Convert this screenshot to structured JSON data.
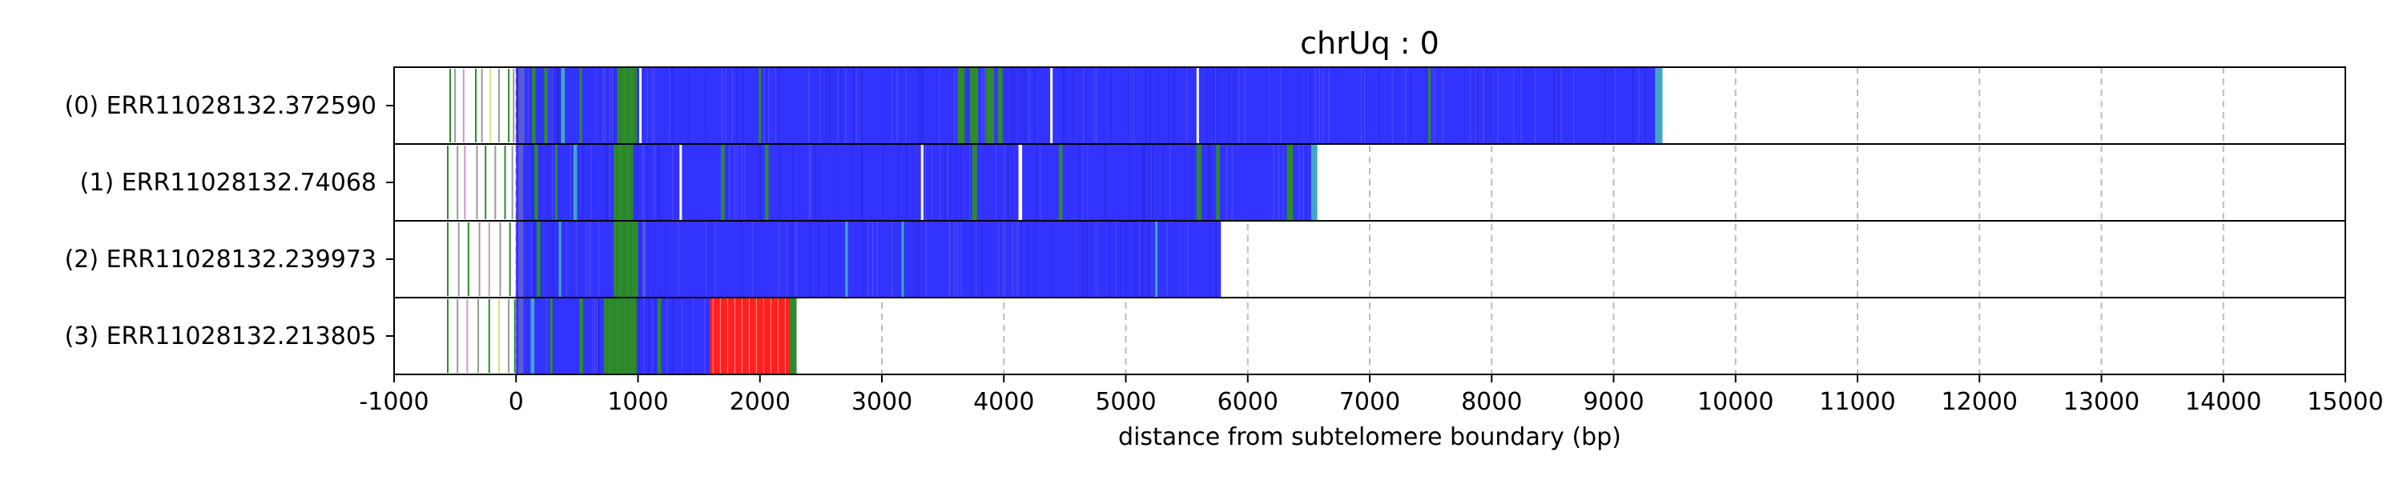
{
  "chart_data": {
    "type": "bar",
    "orientation": "horizontal",
    "title": "chrUq : 0",
    "xlabel": "distance from subtelomere boundary (bp)",
    "xlim": [
      -1000,
      15000
    ],
    "x_ticks": [
      -1000,
      0,
      1000,
      2000,
      3000,
      4000,
      5000,
      6000,
      7000,
      8000,
      9000,
      10000,
      11000,
      12000,
      13000,
      14000,
      15000
    ],
    "x_tick_labels": [
      "-1000",
      "0",
      "1000",
      "2000",
      "3000",
      "4000",
      "5000",
      "6000",
      "7000",
      "8000",
      "9000",
      "10000",
      "11000",
      "12000",
      "13000",
      "14000",
      "15000"
    ],
    "grid": "vertical dashed at x ticks",
    "colors": {
      "repeat": "#3333ff",
      "variant_green": "#2e8b2e",
      "variant_red": "#ff2020",
      "variant_cyan": "#3fa9c4",
      "subtelomere_grey": "#999999",
      "grid": "#bbbbbb"
    },
    "reads": [
      {
        "label": "(0) ERR11028132.372590",
        "main_start": 0,
        "main_end": 9400,
        "pre_marks": [
          {
            "x": -540,
            "c": "#2e8b2e"
          },
          {
            "x": -500,
            "c": "#999999"
          },
          {
            "x": -430,
            "c": "#cc99cc"
          },
          {
            "x": -330,
            "c": "#2e8b2e"
          },
          {
            "x": -280,
            "c": "#999999"
          },
          {
            "x": -210,
            "c": "#dddd88"
          },
          {
            "x": -140,
            "c": "#999999"
          },
          {
            "x": -60,
            "c": "#2e8b2e"
          },
          {
            "x": -20,
            "c": "#999999"
          }
        ],
        "overlays": [
          {
            "x0": 20,
            "x1": 70,
            "c": "#5b5bd6"
          },
          {
            "x0": 130,
            "x1": 160,
            "c": "#2e8b2e"
          },
          {
            "x0": 230,
            "x1": 260,
            "c": "#2e8b2e"
          },
          {
            "x0": 370,
            "x1": 400,
            "c": "#3fa9c4"
          },
          {
            "x0": 520,
            "x1": 540,
            "c": "#2e8b2e"
          },
          {
            "x0": 830,
            "x1": 990,
            "c": "#2e8b2e"
          },
          {
            "x0": 1010,
            "x1": 1030,
            "c": "#ffffff"
          },
          {
            "x0": 1990,
            "x1": 2010,
            "c": "#2e8b2e"
          },
          {
            "x0": 3620,
            "x1": 3680,
            "c": "#2e8b2e"
          },
          {
            "x0": 3720,
            "x1": 3790,
            "c": "#2e8b2e"
          },
          {
            "x0": 3850,
            "x1": 3920,
            "c": "#2e8b2e"
          },
          {
            "x0": 3950,
            "x1": 3990,
            "c": "#2e8b2e"
          },
          {
            "x0": 4380,
            "x1": 4400,
            "c": "#ffffff"
          },
          {
            "x0": 5580,
            "x1": 5600,
            "c": "#ffffff"
          },
          {
            "x0": 7480,
            "x1": 7500,
            "c": "#2e8b2e"
          },
          {
            "x0": 9340,
            "x1": 9400,
            "c": "#3fa9c4"
          }
        ]
      },
      {
        "label": "(1) ERR11028132.74068",
        "main_start": 0,
        "main_end": 6570,
        "pre_marks": [
          {
            "x": -560,
            "c": "#2e8b2e"
          },
          {
            "x": -480,
            "c": "#999999"
          },
          {
            "x": -420,
            "c": "#cc99cc"
          },
          {
            "x": -320,
            "c": "#999999"
          },
          {
            "x": -250,
            "c": "#2e8b2e"
          },
          {
            "x": -170,
            "c": "#999999"
          },
          {
            "x": -90,
            "c": "#2e8b2e"
          },
          {
            "x": -30,
            "c": "#999999"
          }
        ],
        "overlays": [
          {
            "x0": 20,
            "x1": 60,
            "c": "#5b5bd6"
          },
          {
            "x0": 150,
            "x1": 180,
            "c": "#2e8b2e"
          },
          {
            "x0": 320,
            "x1": 340,
            "c": "#2e8b2e"
          },
          {
            "x0": 470,
            "x1": 500,
            "c": "#3fa9c4"
          },
          {
            "x0": 800,
            "x1": 960,
            "c": "#2e8b2e"
          },
          {
            "x0": 1340,
            "x1": 1360,
            "c": "#ffffff"
          },
          {
            "x0": 1680,
            "x1": 1710,
            "c": "#2e8b2e"
          },
          {
            "x0": 2040,
            "x1": 2070,
            "c": "#2e8b2e"
          },
          {
            "x0": 3320,
            "x1": 3340,
            "c": "#ffffff"
          },
          {
            "x0": 3740,
            "x1": 3780,
            "c": "#2e8b2e"
          },
          {
            "x0": 4120,
            "x1": 4150,
            "c": "#ffffff"
          },
          {
            "x0": 4450,
            "x1": 4480,
            "c": "#2e8b2e"
          },
          {
            "x0": 5580,
            "x1": 5620,
            "c": "#2e8b2e"
          },
          {
            "x0": 5740,
            "x1": 5770,
            "c": "#2e8b2e"
          },
          {
            "x0": 6320,
            "x1": 6370,
            "c": "#2e8b2e"
          },
          {
            "x0": 6520,
            "x1": 6570,
            "c": "#3fa9c4"
          }
        ]
      },
      {
        "label": "(2) ERR11028132.239973",
        "main_start": 0,
        "main_end": 5780,
        "pre_marks": [
          {
            "x": -560,
            "c": "#2e8b2e"
          },
          {
            "x": -470,
            "c": "#999999"
          },
          {
            "x": -390,
            "c": "#2e8b2e"
          },
          {
            "x": -300,
            "c": "#999999"
          },
          {
            "x": -220,
            "c": "#cc99cc"
          },
          {
            "x": -130,
            "c": "#999999"
          },
          {
            "x": -50,
            "c": "#2e8b2e"
          }
        ],
        "overlays": [
          {
            "x0": 20,
            "x1": 60,
            "c": "#5b5bd6"
          },
          {
            "x0": 170,
            "x1": 200,
            "c": "#2e8b2e"
          },
          {
            "x0": 350,
            "x1": 370,
            "c": "#3fa9c4"
          },
          {
            "x0": 800,
            "x1": 1000,
            "c": "#2e8b2e"
          },
          {
            "x0": 1040,
            "x1": 1060,
            "c": "#5b5bd6"
          },
          {
            "x0": 2700,
            "x1": 2720,
            "c": "#3fa9c4"
          },
          {
            "x0": 3160,
            "x1": 3180,
            "c": "#3fa9c4"
          },
          {
            "x0": 5240,
            "x1": 5260,
            "c": "#3fa9c4"
          }
        ]
      },
      {
        "label": "(3) ERR11028132.213805",
        "main_start": 0,
        "main_end": 2300,
        "pre_marks": [
          {
            "x": -560,
            "c": "#2e8b2e"
          },
          {
            "x": -480,
            "c": "#999999"
          },
          {
            "x": -400,
            "c": "#cc99cc"
          },
          {
            "x": -310,
            "c": "#999999"
          },
          {
            "x": -220,
            "c": "#2e8b2e"
          },
          {
            "x": -140,
            "c": "#dddd88"
          },
          {
            "x": -60,
            "c": "#999999"
          },
          {
            "x": -10,
            "c": "#2e8b2e"
          }
        ],
        "overlays": [
          {
            "x0": 20,
            "x1": 60,
            "c": "#5b5bd6"
          },
          {
            "x0": 120,
            "x1": 150,
            "c": "#3fa9c4"
          },
          {
            "x0": 280,
            "x1": 300,
            "c": "#2e8b2e"
          },
          {
            "x0": 520,
            "x1": 550,
            "c": "#2e8b2e"
          },
          {
            "x0": 720,
            "x1": 990,
            "c": "#2e8b2e"
          },
          {
            "x0": 1160,
            "x1": 1190,
            "c": "#2e8b2e"
          },
          {
            "x0": 1590,
            "x1": 2250,
            "c": "#ff2020"
          },
          {
            "x0": 2240,
            "x1": 2300,
            "c": "#2e8b2e"
          }
        ]
      }
    ]
  }
}
